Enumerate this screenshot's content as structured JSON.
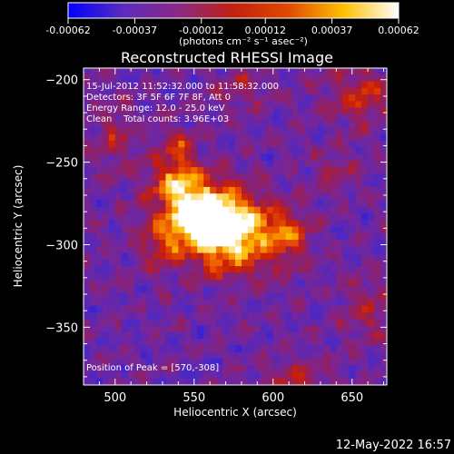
{
  "colorbar": {
    "ticks": [
      "-0.00062",
      "-0.00037",
      "-0.00012",
      "0.00012",
      "0.00037",
      "0.00062"
    ],
    "unit_label": "(photons cm⁻² s⁻¹ asec⁻²)"
  },
  "plot": {
    "title": "Reconstructed RHESSI Image",
    "annotations": [
      "15-Jul-2012 11:52:32.000 to 11:58:32.000",
      "Detectors: 3F 5F 6F 7F 8F, Att 0",
      "Energy Range: 12.0 - 25.0 keV",
      "Clean    Total counts: 3.96E+03"
    ],
    "peak_label": "Position of Peak = [570,-308]"
  },
  "footer": {
    "timestamp": "12-May-2022 16:57"
  },
  "chart_data": {
    "type": "heatmap",
    "title": "Reconstructed RHESSI Image",
    "xlabel": "Heliocentric X (arcsec)",
    "ylabel": "Heliocentric Y (arcsec)",
    "xlim": [
      480,
      672
    ],
    "ylim": [
      -385,
      -193
    ],
    "x_ticks": [
      500,
      550,
      600,
      650
    ],
    "y_ticks": [
      -200,
      -250,
      -300,
      -350
    ],
    "value_range": [
      -0.00062,
      0.00062
    ],
    "colormap": [
      "#0000ff",
      "#5b2bbd",
      "#8a2a86",
      "#c22010",
      "#e04a00",
      "#ffc000",
      "#ffffff"
    ],
    "peak": {
      "x": 570,
      "y": -308
    },
    "sources": [
      {
        "x": 572,
        "y": -292,
        "sx": 18,
        "sy": 16,
        "amp": 1.15
      },
      {
        "x": 553,
        "y": -282,
        "sx": 16,
        "sy": 12,
        "amp": 0.85
      },
      {
        "x": 540,
        "y": -262,
        "sx": 12,
        "sy": 11,
        "amp": 0.7
      },
      {
        "x": 608,
        "y": -295,
        "sx": 10,
        "sy": 12,
        "amp": 0.55
      },
      {
        "x": 530,
        "y": -300,
        "sx": 10,
        "sy": 10,
        "amp": 0.45
      },
      {
        "x": 540,
        "y": -240,
        "sx": 8,
        "sy": 8,
        "amp": 0.35
      },
      {
        "x": 655,
        "y": -210,
        "sx": 14,
        "sy": 12,
        "amp": 0.45
      },
      {
        "x": 640,
        "y": -255,
        "sx": 10,
        "sy": 8,
        "amp": 0.3
      },
      {
        "x": 660,
        "y": -340,
        "sx": 12,
        "sy": 14,
        "amp": 0.3
      },
      {
        "x": 612,
        "y": -380,
        "sx": 14,
        "sy": 6,
        "amp": 0.35
      },
      {
        "x": 500,
        "y": -235,
        "sx": 10,
        "sy": 14,
        "amp": 0.3
      },
      {
        "x": 580,
        "y": -205,
        "sx": 12,
        "sy": 8,
        "amp": 0.25
      }
    ]
  }
}
